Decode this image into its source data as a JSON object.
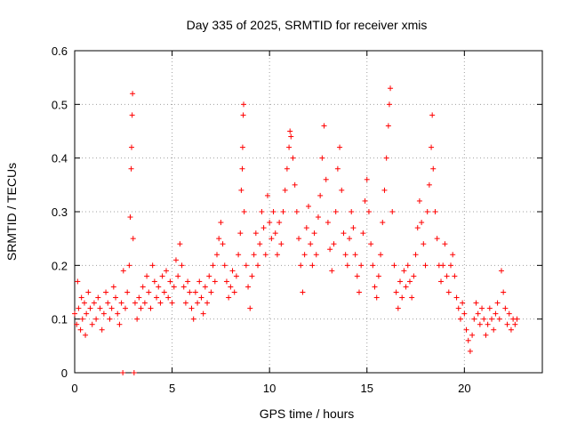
{
  "chart_data": {
    "type": "scatter",
    "title": "Day 335 of 2025, SRMTID for receiver xmis",
    "xlabel": "GPS time / hours",
    "ylabel": "SRMTID / TECUs",
    "xlim": [
      0,
      24
    ],
    "ylim": [
      0,
      0.6
    ],
    "x_ticks": [
      0,
      5,
      10,
      15,
      20
    ],
    "x_tick_labels": [
      "0",
      "5",
      "10",
      "15",
      "20"
    ],
    "y_ticks": [
      0,
      0.1,
      0.2,
      0.3,
      0.4,
      0.5,
      0.6
    ],
    "y_tick_labels": [
      "0",
      "0.1",
      "0.2",
      "0.3",
      "0.4",
      "0.5",
      "0.6"
    ],
    "grid": true,
    "marker": "+",
    "color": "#ff0000",
    "series": [
      {
        "name": "SRMTID",
        "points": [
          [
            0.0,
            0.11
          ],
          [
            0.1,
            0.09
          ],
          [
            0.15,
            0.17
          ],
          [
            0.2,
            0.12
          ],
          [
            0.3,
            0.08
          ],
          [
            0.35,
            0.14
          ],
          [
            0.4,
            0.1
          ],
          [
            0.5,
            0.13
          ],
          [
            0.55,
            0.07
          ],
          [
            0.6,
            0.11
          ],
          [
            0.7,
            0.15
          ],
          [
            0.8,
            0.12
          ],
          [
            0.9,
            0.09
          ],
          [
            1.0,
            0.13
          ],
          [
            1.1,
            0.1
          ],
          [
            1.2,
            0.14
          ],
          [
            1.3,
            0.12
          ],
          [
            1.4,
            0.08
          ],
          [
            1.5,
            0.11
          ],
          [
            1.6,
            0.15
          ],
          [
            1.7,
            0.13
          ],
          [
            1.8,
            0.1
          ],
          [
            1.9,
            0.12
          ],
          [
            2.0,
            0.16
          ],
          [
            2.1,
            0.14
          ],
          [
            2.2,
            0.11
          ],
          [
            2.3,
            0.09
          ],
          [
            2.4,
            0.13
          ],
          [
            2.5,
            0.19
          ],
          [
            2.6,
            0.12
          ],
          [
            2.7,
            0.15
          ],
          [
            2.8,
            0.2
          ],
          [
            2.85,
            0.29
          ],
          [
            2.9,
            0.38
          ],
          [
            2.92,
            0.42
          ],
          [
            2.95,
            0.48
          ],
          [
            2.97,
            0.52
          ],
          [
            3.0,
            0.25
          ],
          [
            3.1,
            0.13
          ],
          [
            3.2,
            0.1
          ],
          [
            3.3,
            0.14
          ],
          [
            3.4,
            0.12
          ],
          [
            3.5,
            0.16
          ],
          [
            3.6,
            0.13
          ],
          [
            3.7,
            0.18
          ],
          [
            3.8,
            0.15
          ],
          [
            3.9,
            0.12
          ],
          [
            4.0,
            0.2
          ],
          [
            4.1,
            0.17
          ],
          [
            4.2,
            0.14
          ],
          [
            4.3,
            0.16
          ],
          [
            4.4,
            0.13
          ],
          [
            4.5,
            0.18
          ],
          [
            4.6,
            0.15
          ],
          [
            4.7,
            0.19
          ],
          [
            4.8,
            0.14
          ],
          [
            4.9,
            0.17
          ],
          [
            5.0,
            0.13
          ],
          [
            5.1,
            0.16
          ],
          [
            5.2,
            0.21
          ],
          [
            5.3,
            0.18
          ],
          [
            5.4,
            0.24
          ],
          [
            5.5,
            0.2
          ],
          [
            5.6,
            0.16
          ],
          [
            5.7,
            0.13
          ],
          [
            5.8,
            0.17
          ],
          [
            5.9,
            0.15
          ],
          [
            6.0,
            0.12
          ],
          [
            6.1,
            0.1
          ],
          [
            6.2,
            0.15
          ],
          [
            6.3,
            0.13
          ],
          [
            6.4,
            0.17
          ],
          [
            6.5,
            0.14
          ],
          [
            6.6,
            0.11
          ],
          [
            6.7,
            0.16
          ],
          [
            6.8,
            0.13
          ],
          [
            6.9,
            0.18
          ],
          [
            7.0,
            0.15
          ],
          [
            7.1,
            0.2
          ],
          [
            7.2,
            0.17
          ],
          [
            7.3,
            0.22
          ],
          [
            7.4,
            0.25
          ],
          [
            7.5,
            0.28
          ],
          [
            7.6,
            0.24
          ],
          [
            7.7,
            0.2
          ],
          [
            7.8,
            0.17
          ],
          [
            7.9,
            0.14
          ],
          [
            8.0,
            0.16
          ],
          [
            8.1,
            0.19
          ],
          [
            8.2,
            0.15
          ],
          [
            8.3,
            0.18
          ],
          [
            8.4,
            0.22
          ],
          [
            8.5,
            0.26
          ],
          [
            8.55,
            0.34
          ],
          [
            8.6,
            0.38
          ],
          [
            8.62,
            0.42
          ],
          [
            8.65,
            0.48
          ],
          [
            8.67,
            0.5
          ],
          [
            8.7,
            0.3
          ],
          [
            8.8,
            0.2
          ],
          [
            8.9,
            0.16
          ],
          [
            9.0,
            0.12
          ],
          [
            9.1,
            0.18
          ],
          [
            9.2,
            0.22
          ],
          [
            9.3,
            0.26
          ],
          [
            9.4,
            0.2
          ],
          [
            9.5,
            0.24
          ],
          [
            9.6,
            0.3
          ],
          [
            9.7,
            0.27
          ],
          [
            9.8,
            0.22
          ],
          [
            9.9,
            0.33
          ],
          [
            10.0,
            0.28
          ],
          [
            10.1,
            0.25
          ],
          [
            10.2,
            0.3
          ],
          [
            10.3,
            0.26
          ],
          [
            10.4,
            0.22
          ],
          [
            10.5,
            0.28
          ],
          [
            10.6,
            0.24
          ],
          [
            10.7,
            0.3
          ],
          [
            10.8,
            0.34
          ],
          [
            10.9,
            0.38
          ],
          [
            11.0,
            0.42
          ],
          [
            11.05,
            0.45
          ],
          [
            11.1,
            0.44
          ],
          [
            11.2,
            0.4
          ],
          [
            11.3,
            0.35
          ],
          [
            11.4,
            0.3
          ],
          [
            11.5,
            0.25
          ],
          [
            11.6,
            0.2
          ],
          [
            11.7,
            0.15
          ],
          [
            11.8,
            0.22
          ],
          [
            11.9,
            0.27
          ],
          [
            12.0,
            0.31
          ],
          [
            12.1,
            0.24
          ],
          [
            12.2,
            0.2
          ],
          [
            12.3,
            0.26
          ],
          [
            12.4,
            0.22
          ],
          [
            12.5,
            0.29
          ],
          [
            12.6,
            0.33
          ],
          [
            12.7,
            0.4
          ],
          [
            12.8,
            0.46
          ],
          [
            12.9,
            0.36
          ],
          [
            13.0,
            0.28
          ],
          [
            13.1,
            0.23
          ],
          [
            13.2,
            0.19
          ],
          [
            13.3,
            0.24
          ],
          [
            13.4,
            0.3
          ],
          [
            13.5,
            0.38
          ],
          [
            13.6,
            0.42
          ],
          [
            13.7,
            0.34
          ],
          [
            13.8,
            0.26
          ],
          [
            13.9,
            0.22
          ],
          [
            14.0,
            0.2
          ],
          [
            14.1,
            0.25
          ],
          [
            14.2,
            0.3
          ],
          [
            14.3,
            0.27
          ],
          [
            14.4,
            0.22
          ],
          [
            14.5,
            0.18
          ],
          [
            14.6,
            0.15
          ],
          [
            14.7,
            0.2
          ],
          [
            14.8,
            0.26
          ],
          [
            14.9,
            0.32
          ],
          [
            15.0,
            0.36
          ],
          [
            15.1,
            0.3
          ],
          [
            15.2,
            0.24
          ],
          [
            15.3,
            0.2
          ],
          [
            15.4,
            0.16
          ],
          [
            15.5,
            0.14
          ],
          [
            15.6,
            0.18
          ],
          [
            15.7,
            0.22
          ],
          [
            15.8,
            0.28
          ],
          [
            15.9,
            0.34
          ],
          [
            16.0,
            0.4
          ],
          [
            16.1,
            0.46
          ],
          [
            16.15,
            0.5
          ],
          [
            16.2,
            0.53
          ],
          [
            16.3,
            0.3
          ],
          [
            16.4,
            0.2
          ],
          [
            16.5,
            0.15
          ],
          [
            16.6,
            0.12
          ],
          [
            16.7,
            0.17
          ],
          [
            16.8,
            0.14
          ],
          [
            16.9,
            0.19
          ],
          [
            17.0,
            0.16
          ],
          [
            17.1,
            0.2
          ],
          [
            17.2,
            0.17
          ],
          [
            17.3,
            0.14
          ],
          [
            17.4,
            0.18
          ],
          [
            17.5,
            0.22
          ],
          [
            17.6,
            0.27
          ],
          [
            17.7,
            0.32
          ],
          [
            17.8,
            0.28
          ],
          [
            17.9,
            0.24
          ],
          [
            18.0,
            0.2
          ],
          [
            18.1,
            0.3
          ],
          [
            18.2,
            0.35
          ],
          [
            18.3,
            0.42
          ],
          [
            18.35,
            0.48
          ],
          [
            18.4,
            0.38
          ],
          [
            18.5,
            0.3
          ],
          [
            18.6,
            0.25
          ],
          [
            18.7,
            0.2
          ],
          [
            18.8,
            0.17
          ],
          [
            18.9,
            0.2
          ],
          [
            19.0,
            0.24
          ],
          [
            19.1,
            0.18
          ],
          [
            19.2,
            0.15
          ],
          [
            19.3,
            0.2
          ],
          [
            19.4,
            0.22
          ],
          [
            19.5,
            0.18
          ],
          [
            19.6,
            0.14
          ],
          [
            19.7,
            0.12
          ],
          [
            19.8,
            0.1
          ],
          [
            19.9,
            0.13
          ],
          [
            20.0,
            0.11
          ],
          [
            20.1,
            0.08
          ],
          [
            20.2,
            0.06
          ],
          [
            20.3,
            0.04
          ],
          [
            20.4,
            0.07
          ],
          [
            20.5,
            0.1
          ],
          [
            20.6,
            0.13
          ],
          [
            20.7,
            0.11
          ],
          [
            20.8,
            0.09
          ],
          [
            20.9,
            0.12
          ],
          [
            21.0,
            0.1
          ],
          [
            21.1,
            0.07
          ],
          [
            21.2,
            0.09
          ],
          [
            21.3,
            0.12
          ],
          [
            21.4,
            0.1
          ],
          [
            21.5,
            0.08
          ],
          [
            21.6,
            0.11
          ],
          [
            21.7,
            0.13
          ],
          [
            21.8,
            0.1
          ],
          [
            21.9,
            0.19
          ],
          [
            22.0,
            0.15
          ],
          [
            22.1,
            0.12
          ],
          [
            22.2,
            0.09
          ],
          [
            22.3,
            0.11
          ],
          [
            22.4,
            0.08
          ],
          [
            22.5,
            0.1
          ],
          [
            22.6,
            0.09
          ],
          [
            22.7,
            0.1
          ],
          [
            2.47,
            0.0
          ],
          [
            3.05,
            0.0
          ]
        ]
      }
    ]
  }
}
